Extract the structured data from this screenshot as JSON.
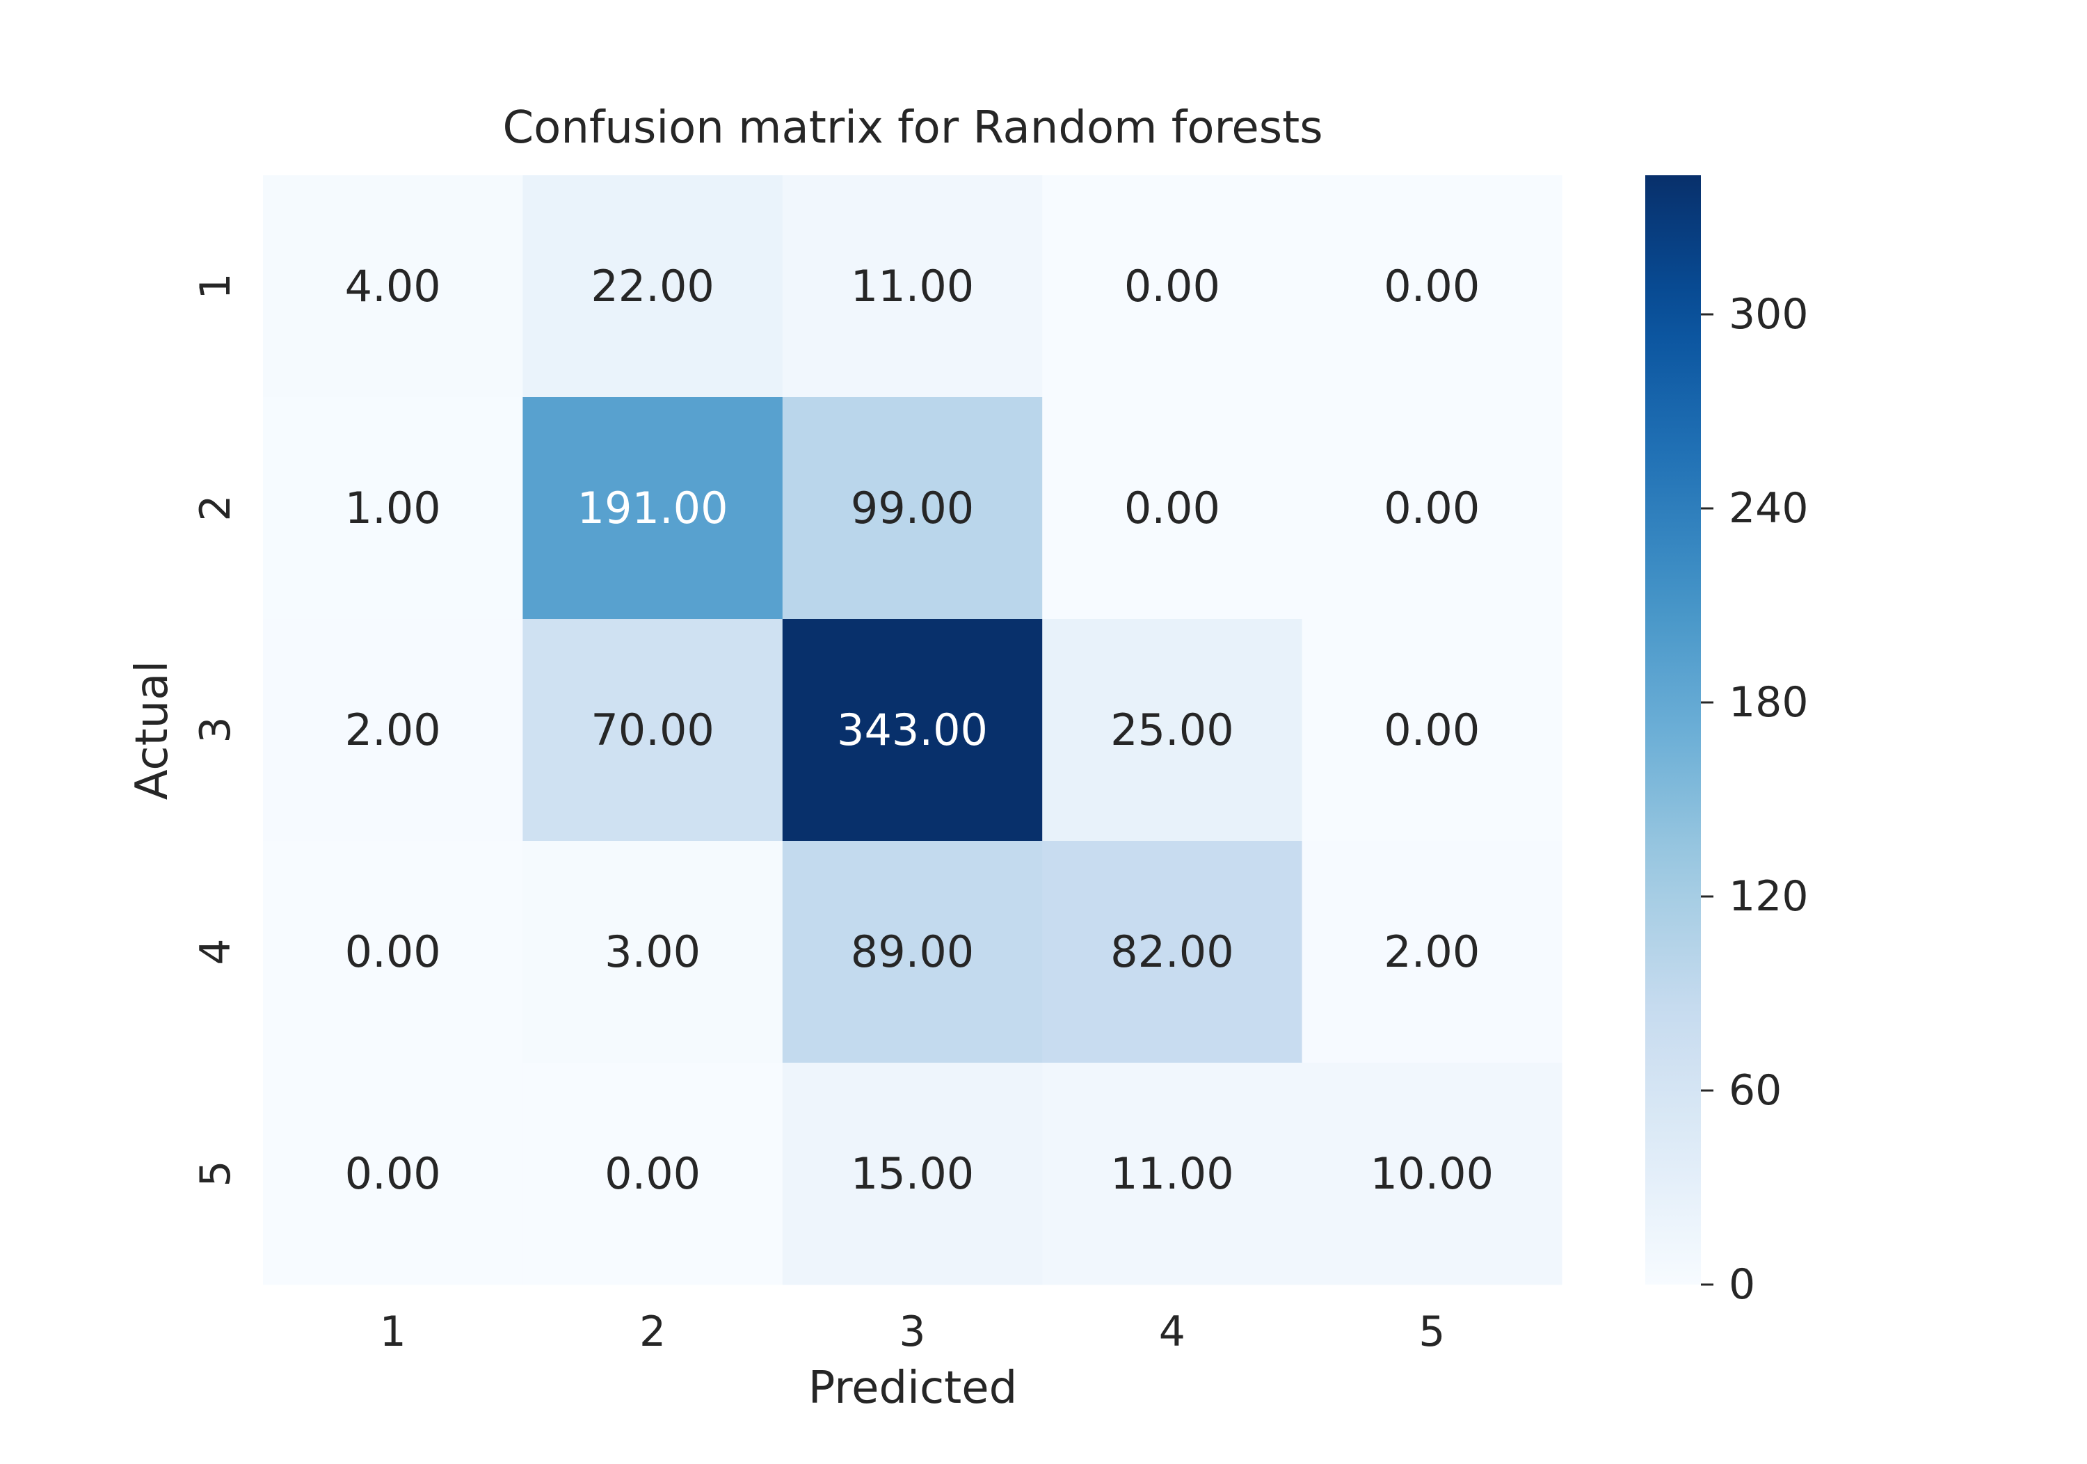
{
  "chart_data": {
    "type": "heatmap",
    "title": "Confusion matrix for Random forests",
    "xlabel": "Predicted",
    "ylabel": "Actual",
    "x_categories": [
      "1",
      "2",
      "3",
      "4",
      "5"
    ],
    "y_categories": [
      "1",
      "2",
      "3",
      "4",
      "5"
    ],
    "values": [
      [
        4,
        22,
        11,
        0,
        0
      ],
      [
        1,
        191,
        99,
        0,
        0
      ],
      [
        2,
        70,
        343,
        25,
        0
      ],
      [
        0,
        3,
        89,
        82,
        2
      ],
      [
        0,
        0,
        15,
        11,
        10
      ]
    ],
    "value_labels": [
      [
        "4.00",
        "22.00",
        "11.00",
        "0.00",
        "0.00"
      ],
      [
        "1.00",
        "191.00",
        "99.00",
        "0.00",
        "0.00"
      ],
      [
        "2.00",
        "70.00",
        "343.00",
        "25.00",
        "0.00"
      ],
      [
        "0.00",
        "3.00",
        "89.00",
        "82.00",
        "2.00"
      ],
      [
        "0.00",
        "0.00",
        "15.00",
        "11.00",
        "10.00"
      ]
    ],
    "colormap": "Blues",
    "colorbar": {
      "range": [
        0,
        343
      ],
      "ticks": [
        0,
        60,
        120,
        180,
        240,
        300
      ],
      "tick_labels": [
        "0",
        "60",
        "120",
        "180",
        "240",
        "300"
      ]
    },
    "grid": false
  }
}
